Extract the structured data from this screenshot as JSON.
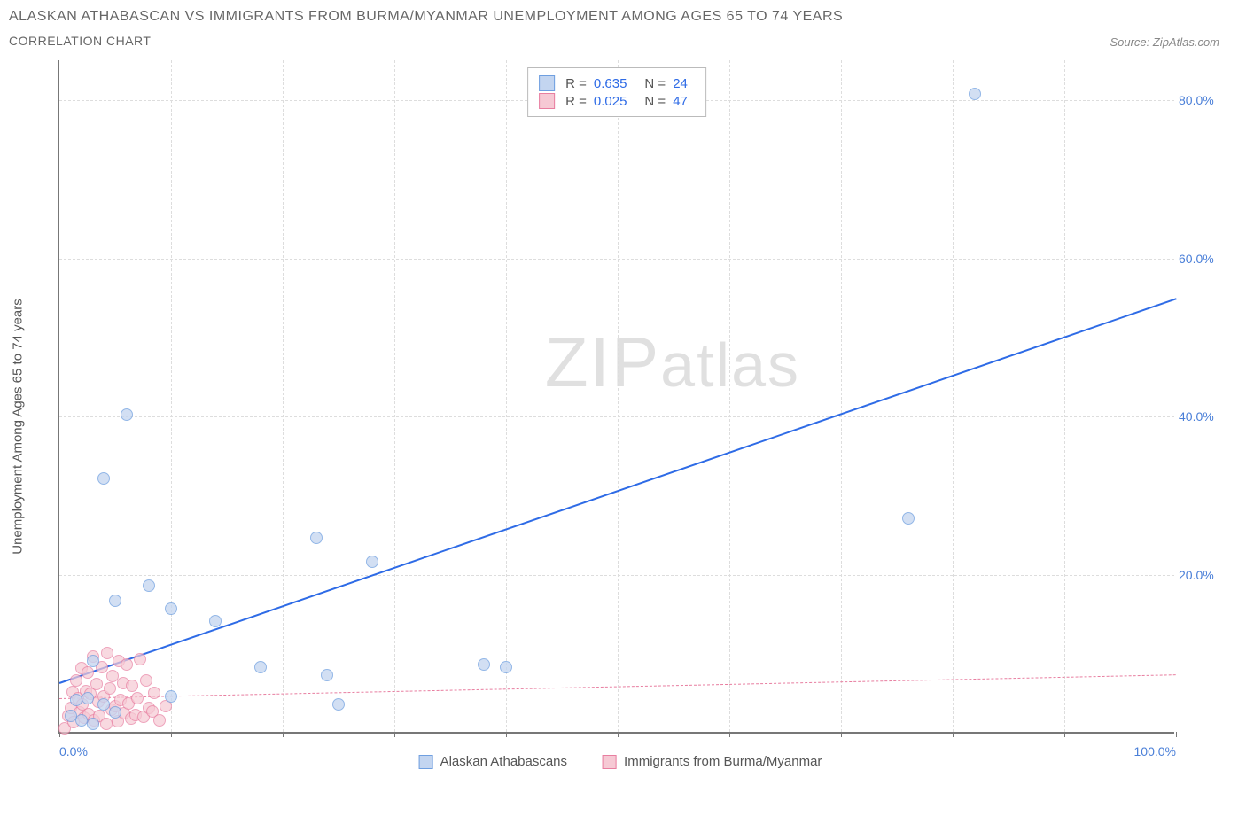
{
  "title_line1": "ALASKAN ATHABASCAN VS IMMIGRANTS FROM BURMA/MYANMAR UNEMPLOYMENT AMONG AGES 65 TO 74 YEARS",
  "title_line2": "CORRELATION CHART",
  "source_label": "Source: ZipAtlas.com",
  "ylabel": "Unemployment Among Ages 65 to 74 years",
  "watermark_part1": "ZIP",
  "watermark_part2": "atlas",
  "chart": {
    "type": "scatter",
    "background_color": "#ffffff",
    "grid_color": "#dddddd",
    "axis_color": "#777777",
    "label_color": "#4a7fd8",
    "xlim": [
      0,
      100
    ],
    "ylim": [
      0,
      85
    ],
    "x_ticks": [
      0,
      10,
      20,
      30,
      40,
      50,
      60,
      70,
      80,
      90,
      100
    ],
    "x_tick_labels": {
      "0": "0.0%",
      "100": "100.0%"
    },
    "y_ticks": [
      20,
      40,
      60,
      80
    ],
    "y_tick_labels": {
      "20": "20.0%",
      "40": "40.0%",
      "60": "60.0%",
      "80": "80.0%"
    },
    "tick_fontsize": 14,
    "series_a": {
      "name": "Alaskan Athabascans",
      "fill": "#c3d5f0",
      "stroke": "#6f9fe0",
      "marker_radius": 7,
      "marker_opacity": 0.75,
      "trend": {
        "color": "#2e6be6",
        "width": 2.5,
        "dash": "solid",
        "x1": 0,
        "y1": 6.5,
        "x2": 100,
        "y2": 55
      },
      "stats": {
        "R": "0.635",
        "N": "24"
      },
      "points": [
        {
          "x": 82,
          "y": 80.5
        },
        {
          "x": 76,
          "y": 27
        },
        {
          "x": 6,
          "y": 40
        },
        {
          "x": 4,
          "y": 32
        },
        {
          "x": 23,
          "y": 24.5
        },
        {
          "x": 28,
          "y": 21.5
        },
        {
          "x": 8,
          "y": 18.5
        },
        {
          "x": 5,
          "y": 16.5
        },
        {
          "x": 10,
          "y": 15.5
        },
        {
          "x": 14,
          "y": 14
        },
        {
          "x": 3,
          "y": 9
        },
        {
          "x": 18,
          "y": 8.2
        },
        {
          "x": 38,
          "y": 8.5
        },
        {
          "x": 40,
          "y": 8.2
        },
        {
          "x": 24,
          "y": 7.2
        },
        {
          "x": 10,
          "y": 4.5
        },
        {
          "x": 25,
          "y": 3.5
        },
        {
          "x": 1.5,
          "y": 4
        },
        {
          "x": 2.5,
          "y": 4.2
        },
        {
          "x": 4,
          "y": 3.5
        },
        {
          "x": 1,
          "y": 2
        },
        {
          "x": 2,
          "y": 1.5
        },
        {
          "x": 3,
          "y": 1
        },
        {
          "x": 5,
          "y": 2.5
        }
      ]
    },
    "series_b": {
      "name": "Immigrants from Burma/Myanmar",
      "fill": "#f6c9d4",
      "stroke": "#e87ea0",
      "marker_radius": 7,
      "marker_opacity": 0.7,
      "trend": {
        "color": "#e87ea0",
        "width": 1.5,
        "dash": "6,5",
        "x1": 0,
        "y1": 4.5,
        "x2": 100,
        "y2": 7.5
      },
      "stats": {
        "R": "0.025",
        "N": "47"
      },
      "points": [
        {
          "x": 0.5,
          "y": 0.5
        },
        {
          "x": 0.8,
          "y": 2
        },
        {
          "x": 1,
          "y": 3
        },
        {
          "x": 1.2,
          "y": 5
        },
        {
          "x": 1.3,
          "y": 1.2
        },
        {
          "x": 1.5,
          "y": 6.5
        },
        {
          "x": 1.7,
          "y": 4.2
        },
        {
          "x": 1.8,
          "y": 2.5
        },
        {
          "x": 2,
          "y": 8
        },
        {
          "x": 2.1,
          "y": 3.5
        },
        {
          "x": 2.2,
          "y": 1.8
        },
        {
          "x": 2.4,
          "y": 5.2
        },
        {
          "x": 2.5,
          "y": 7.5
        },
        {
          "x": 2.6,
          "y": 2.2
        },
        {
          "x": 2.8,
          "y": 4.8
        },
        {
          "x": 3,
          "y": 9.5
        },
        {
          "x": 3.1,
          "y": 1.5
        },
        {
          "x": 3.3,
          "y": 6
        },
        {
          "x": 3.5,
          "y": 3.8
        },
        {
          "x": 3.6,
          "y": 2
        },
        {
          "x": 3.8,
          "y": 8.2
        },
        {
          "x": 4,
          "y": 4.5
        },
        {
          "x": 4.2,
          "y": 1
        },
        {
          "x": 4.3,
          "y": 10
        },
        {
          "x": 4.5,
          "y": 5.5
        },
        {
          "x": 4.7,
          "y": 2.8
        },
        {
          "x": 4.8,
          "y": 7
        },
        {
          "x": 5,
          "y": 3.2
        },
        {
          "x": 5.2,
          "y": 1.3
        },
        {
          "x": 5.3,
          "y": 9
        },
        {
          "x": 5.5,
          "y": 4
        },
        {
          "x": 5.7,
          "y": 6.2
        },
        {
          "x": 5.8,
          "y": 2.4
        },
        {
          "x": 6,
          "y": 8.5
        },
        {
          "x": 6.2,
          "y": 3.6
        },
        {
          "x": 6.4,
          "y": 1.7
        },
        {
          "x": 6.5,
          "y": 5.8
        },
        {
          "x": 6.8,
          "y": 2.1
        },
        {
          "x": 7,
          "y": 4.3
        },
        {
          "x": 7.2,
          "y": 9.2
        },
        {
          "x": 7.5,
          "y": 1.9
        },
        {
          "x": 7.8,
          "y": 6.5
        },
        {
          "x": 8,
          "y": 3
        },
        {
          "x": 8.3,
          "y": 2.6
        },
        {
          "x": 8.5,
          "y": 4.9
        },
        {
          "x": 9,
          "y": 1.4
        },
        {
          "x": 9.5,
          "y": 3.3
        }
      ]
    },
    "legend_top": {
      "R_label": "R =",
      "N_label": "N ="
    }
  }
}
